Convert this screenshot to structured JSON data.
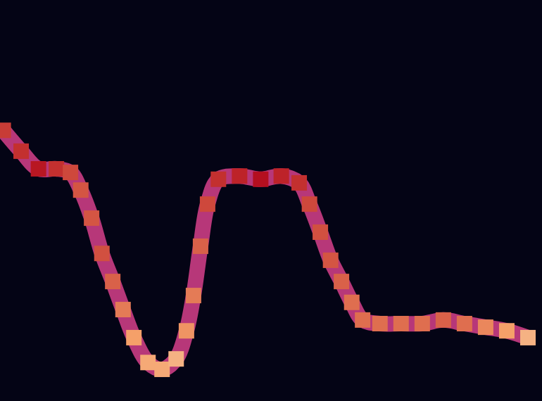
{
  "chart_data": {
    "type": "line",
    "marker": "square",
    "color": "#b73779",
    "tick_labels": false,
    "grid": false,
    "xlim": [
      0,
      100
    ],
    "ylim": [
      0,
      100
    ],
    "intensity_range": [
      0,
      1
    ],
    "x": [
      0.6,
      3.9,
      7.1,
      10.4,
      13.0,
      14.9,
      16.9,
      18.8,
      20.8,
      22.7,
      24.7,
      27.3,
      29.9,
      32.5,
      34.4,
      35.7,
      37.0,
      38.3,
      40.3,
      44.2,
      48.1,
      51.9,
      55.2,
      57.1,
      59.1,
      61.0,
      63.0,
      64.9,
      66.9,
      70.1,
      74.0,
      77.9,
      81.8,
      85.7,
      89.6,
      93.5,
      97.4
    ],
    "values": [
      67.5,
      62.3,
      57.9,
      57.9,
      57.0,
      52.6,
      45.6,
      36.8,
      29.8,
      22.8,
      15.8,
      9.6,
      7.9,
      10.5,
      17.5,
      26.3,
      38.6,
      49.1,
      55.3,
      56.1,
      55.3,
      56.1,
      54.4,
      49.1,
      42.1,
      35.1,
      29.8,
      24.6,
      20.2,
      19.3,
      19.3,
      19.3,
      20.2,
      19.3,
      18.4,
      17.5,
      15.8
    ],
    "intensity": [
      0.8,
      0.85,
      0.95,
      0.85,
      0.75,
      0.7,
      0.7,
      0.72,
      0.65,
      0.55,
      0.4,
      0.35,
      0.35,
      0.3,
      0.45,
      0.55,
      0.65,
      0.75,
      0.85,
      0.9,
      0.98,
      0.9,
      0.85,
      0.75,
      0.72,
      0.7,
      0.65,
      0.6,
      0.6,
      0.6,
      0.6,
      0.6,
      0.65,
      0.6,
      0.5,
      0.4,
      0.3
    ]
  }
}
